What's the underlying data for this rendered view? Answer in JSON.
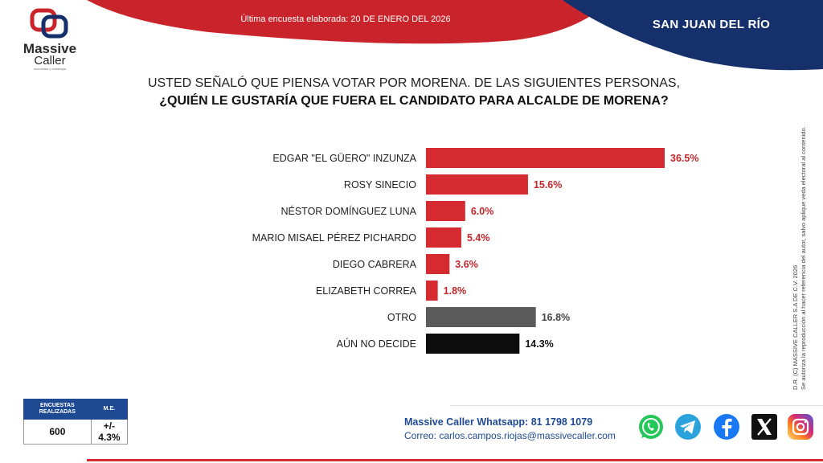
{
  "brand": {
    "name_line1": "Massive",
    "name_line2": "Caller",
    "tagline": "encuestas y estrategia"
  },
  "header": {
    "survey_date": "Última encuesta elaborada: 20 DE ENERO DEL 2026",
    "city": "SAN JUAN DEL RÍO"
  },
  "question": {
    "line1": "USTED SEÑALÓ QUE PIENSA VOTAR POR MORENA. DE LAS SIGUIENTES PERSONAS,",
    "line2": "¿QUIÉN LE GUSTARÍA QUE FUERA EL CANDIDATO PARA ALCALDE DE MORENA?"
  },
  "copyright": {
    "line1": "D.R. (C) MASSIVE CALLER S.A DE C.V. 2026",
    "line2": "Se autoriza la reproducción al hacer referencia del autor, salvo aplique veda electoral al contenido."
  },
  "stats": {
    "header_surveys": "ENCUESTAS REALIZADAS",
    "header_me": "M.E.",
    "surveys": "600",
    "me": "+/- 4.3%"
  },
  "contact": {
    "whatsapp": "Massive Caller Whatsapp: 81 1798 1079",
    "email": "Correo: carlos.campos.riojas@massivecaller.com"
  },
  "colors": {
    "red": "#d52b30",
    "navy": "#16306b",
    "gray": "#5b5b5b",
    "black": "#0d0d0d",
    "label_red": "#c4262b"
  },
  "social_icons": [
    "whatsapp-icon",
    "telegram-icon",
    "facebook-icon",
    "x-icon",
    "instagram-icon"
  ],
  "chart_data": {
    "type": "bar",
    "orientation": "horizontal",
    "categories": [
      "EDGAR \"EL GÜERO\" INZUNZA",
      "ROSY SINECIO",
      "NÉSTOR DOMÍNGUEZ LUNA",
      "MARIO MISAEL PÉREZ PICHARDO",
      "DIEGO CABRERA",
      "ELIZABETH CORREA",
      "OTRO",
      "AÚN NO DECIDE"
    ],
    "values": [
      36.5,
      15.6,
      6.0,
      5.4,
      3.6,
      1.8,
      16.8,
      14.3
    ],
    "value_labels": [
      "36.5%",
      "15.6%",
      "6.0%",
      "5.4%",
      "3.6%",
      "1.8%",
      "16.8%",
      "14.3%"
    ],
    "bar_colors": [
      "#d52b30",
      "#d52b30",
      "#d52b30",
      "#d52b30",
      "#d52b30",
      "#d52b30",
      "#5b5b5b",
      "#0d0d0d"
    ],
    "label_colors": [
      "#c4262b",
      "#c4262b",
      "#c4262b",
      "#c4262b",
      "#c4262b",
      "#c4262b",
      "#444444",
      "#111111"
    ],
    "xlim": [
      0,
      40
    ],
    "grid": false,
    "legend": "none"
  }
}
